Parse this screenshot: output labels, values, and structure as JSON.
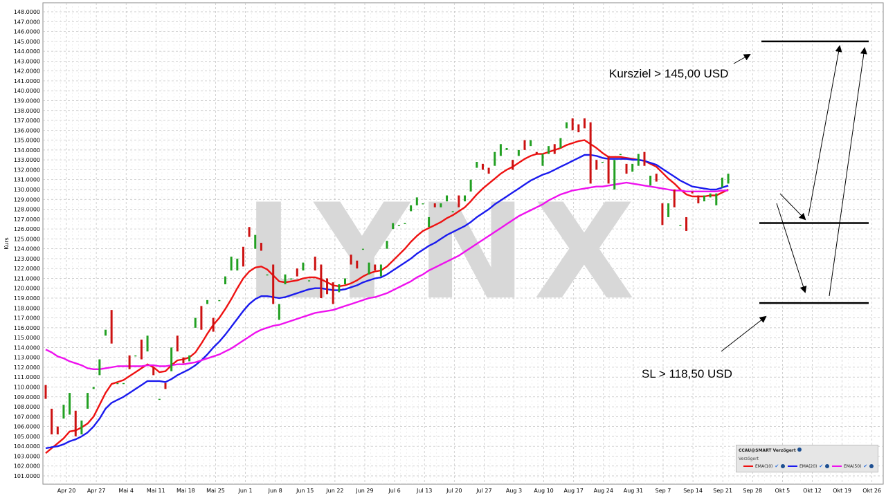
{
  "chart_data": {
    "type": "candlestick",
    "ylabel": "Kurs",
    "ylim": [
      100.5,
      148.6
    ],
    "y_ticks": [
      "101.0000",
      "102.0000",
      "103.0000",
      "104.0000",
      "105.0000",
      "106.0000",
      "107.0000",
      "108.0000",
      "109.0000",
      "110.0000",
      "111.0000",
      "112.0000",
      "113.0000",
      "114.0000",
      "115.0000",
      "116.0000",
      "117.0000",
      "118.0000",
      "119.0000",
      "120.0000",
      "121.0000",
      "122.0000",
      "123.0000",
      "124.0000",
      "125.0000",
      "126.0000",
      "127.0000",
      "128.0000",
      "129.0000",
      "130.0000",
      "131.0000",
      "132.0000",
      "133.0000",
      "134.0000",
      "135.0000",
      "136.0000",
      "137.0000",
      "138.0000",
      "139.0000",
      "140.0000",
      "141.0000",
      "142.0000",
      "143.0000",
      "144.0000",
      "145.0000",
      "146.0000",
      "147.0000",
      "148.0000"
    ],
    "x_ticks": [
      "Apr 20",
      "Apr 27",
      "Mai 4",
      "Mai 11",
      "Mai 18",
      "Mai 25",
      "Jun 1",
      "Jun 8",
      "Jun 15",
      "Jun 22",
      "Jun 29",
      "Jul 6",
      "Jul 13",
      "Jul 20",
      "Jul 27",
      "Aug 3",
      "Aug 10",
      "Aug 17",
      "Aug 24",
      "Aug 31",
      "Sep 7",
      "Sep 14",
      "Sep 21",
      "Sep 28",
      "Okt 5",
      "Okt 12",
      "Okt 19",
      "Okt 26"
    ],
    "grid": true,
    "watermark": "LYNX",
    "candles": [
      {
        "o": 110.2,
        "c": 108.8
      },
      {
        "o": 107.8,
        "c": 105.2
      },
      {
        "o": 106.0,
        "c": 105.2
      },
      {
        "o": 106.8,
        "c": 108.2
      },
      {
        "o": 107.2,
        "c": 109.4
      },
      {
        "o": 107.6,
        "c": 105.0
      },
      {
        "o": 105.2,
        "c": 106.6
      },
      {
        "o": 107.8,
        "c": 109.4
      },
      {
        "o": 109.8,
        "c": 110.0
      },
      {
        "o": 111.2,
        "c": 112.8
      },
      {
        "o": 115.2,
        "c": 115.8
      },
      {
        "o": 117.8,
        "c": 114.4
      },
      {
        "o": 110.4,
        "c": 110.4
      },
      {
        "o": 110.4,
        "c": 110.4
      },
      {
        "o": 113.2,
        "c": 111.8
      },
      {
        "o": 113.2,
        "c": 113.2
      },
      {
        "o": 114.8,
        "c": 112.8
      },
      {
        "o": 113.6,
        "c": 115.2
      },
      {
        "o": 112.0,
        "c": 111.2
      },
      {
        "o": 108.8,
        "c": 108.8
      },
      {
        "o": 110.4,
        "c": 109.8
      },
      {
        "o": 111.6,
        "c": 114.0
      },
      {
        "o": 115.2,
        "c": 113.6
      },
      {
        "o": 113.0,
        "c": 112.4
      },
      {
        "o": 112.6,
        "c": 113.2
      },
      {
        "o": 116.0,
        "c": 117.0
      },
      {
        "o": 118.2,
        "c": 115.8
      },
      {
        "o": 118.4,
        "c": 118.8
      },
      {
        "o": 117.0,
        "c": 115.6
      },
      {
        "o": 118.8,
        "c": 118.8
      },
      {
        "o": 120.4,
        "c": 121.2
      },
      {
        "o": 121.8,
        "c": 123.2
      },
      {
        "o": 121.8,
        "c": 123.0
      },
      {
        "o": 124.2,
        "c": 122.2
      },
      {
        "o": 126.2,
        "c": 125.2
      },
      {
        "o": 124.0,
        "c": 125.4
      },
      {
        "o": 124.6,
        "c": 123.8
      },
      {
        "o": 121.4,
        "c": 121.4
      },
      {
        "o": 122.4,
        "c": 118.4
      },
      {
        "o": 116.8,
        "c": 118.4
      },
      {
        "o": 120.4,
        "c": 121.4
      },
      {
        "o": 121.0,
        "c": 121.0
      },
      {
        "o": 122.0,
        "c": 121.2
      },
      {
        "o": 121.8,
        "c": 122.6
      },
      {
        "o": 120.8,
        "c": 120.8
      },
      {
        "o": 123.2,
        "c": 121.8
      },
      {
        "o": 122.4,
        "c": 119.0
      },
      {
        "o": 121.0,
        "c": 119.4
      },
      {
        "o": 120.6,
        "c": 118.4
      },
      {
        "o": 119.6,
        "c": 120.4
      },
      {
        "o": 120.4,
        "c": 121.0
      },
      {
        "o": 123.4,
        "c": 122.4
      },
      {
        "o": 122.8,
        "c": 122.0
      },
      {
        "o": 124.0,
        "c": 124.0
      },
      {
        "o": 121.4,
        "c": 122.6
      },
      {
        "o": 122.4,
        "c": 121.8
      },
      {
        "o": 121.2,
        "c": 122.4
      },
      {
        "o": 124.0,
        "c": 124.8
      },
      {
        "o": 126.0,
        "c": 126.6
      },
      {
        "o": 126.4,
        "c": 126.4
      },
      {
        "o": 126.6,
        "c": 126.6
      },
      {
        "o": 127.8,
        "c": 128.4
      },
      {
        "o": 128.4,
        "c": 129.2
      },
      {
        "o": 128.6,
        "c": 128.6
      },
      {
        "o": 126.2,
        "c": 127.2
      },
      {
        "o": 128.6,
        "c": 128.2
      },
      {
        "o": 128.2,
        "c": 128.6
      },
      {
        "o": 128.8,
        "c": 129.4
      },
      {
        "o": 127.8,
        "c": 127.8
      },
      {
        "o": 129.4,
        "c": 128.2
      },
      {
        "o": 128.8,
        "c": 129.4
      },
      {
        "o": 129.8,
        "c": 131.0
      },
      {
        "o": 132.2,
        "c": 132.8
      },
      {
        "o": 132.6,
        "c": 132.0
      },
      {
        "o": 132.2,
        "c": 131.6
      },
      {
        "o": 132.4,
        "c": 133.8
      },
      {
        "o": 133.4,
        "c": 134.6
      },
      {
        "o": 134.0,
        "c": 134.2
      },
      {
        "o": 133.0,
        "c": 132.0
      },
      {
        "o": 133.4,
        "c": 134.0
      },
      {
        "o": 135.0,
        "c": 134.0
      },
      {
        "o": 134.4,
        "c": 135.0
      },
      {
        "o": 133.8,
        "c": 133.6
      },
      {
        "o": 132.4,
        "c": 133.6
      },
      {
        "o": 133.6,
        "c": 134.4
      },
      {
        "o": 134.6,
        "c": 133.6
      },
      {
        "o": 134.2,
        "c": 135.2
      },
      {
        "o": 136.2,
        "c": 136.8
      },
      {
        "o": 137.2,
        "c": 136.0
      },
      {
        "o": 136.6,
        "c": 135.8
      },
      {
        "o": 137.2,
        "c": 136.2
      },
      {
        "o": 136.8,
        "c": 130.6
      },
      {
        "o": 133.0,
        "c": 132.0
      },
      {
        "o": 132.8,
        "c": 132.8
      },
      {
        "o": 133.4,
        "c": 130.6
      },
      {
        "o": 130.0,
        "c": 133.0
      },
      {
        "o": 133.6,
        "c": 133.6
      },
      {
        "o": 132.6,
        "c": 131.6
      },
      {
        "o": 131.8,
        "c": 132.6
      },
      {
        "o": 132.4,
        "c": 133.6
      },
      {
        "o": 133.8,
        "c": 132.4
      },
      {
        "o": 130.4,
        "c": 131.4
      },
      {
        "o": 131.6,
        "c": 130.8
      },
      {
        "o": 128.6,
        "c": 126.4
      },
      {
        "o": 127.2,
        "c": 128.6
      },
      {
        "o": 130.0,
        "c": 128.2
      },
      {
        "o": 126.4,
        "c": 126.4
      },
      {
        "o": 127.2,
        "c": 125.8
      },
      {
        "o": 129.8,
        "c": 129.6
      },
      {
        "o": 129.4,
        "c": 128.6
      },
      {
        "o": 128.8,
        "c": 129.4
      },
      {
        "o": 129.2,
        "c": 129.6
      },
      {
        "o": 128.4,
        "c": 129.6
      },
      {
        "o": 130.2,
        "c": 131.2
      },
      {
        "o": 130.6,
        "c": 131.6
      }
    ],
    "series": [
      {
        "name": "EMA(10)",
        "color": "#ee1111",
        "values": [
          103.3,
          103.8,
          104.3,
          104.8,
          105.5,
          105.6,
          105.9,
          106.3,
          107.0,
          108.2,
          109.4,
          110.3,
          110.5,
          110.7,
          111.1,
          111.5,
          111.9,
          112.3,
          112.0,
          111.5,
          111.6,
          112.2,
          112.7,
          112.8,
          113.0,
          113.5,
          114.4,
          115.4,
          116.3,
          117.0,
          117.9,
          118.9,
          120.0,
          121.0,
          121.7,
          122.1,
          122.2,
          121.9,
          121.3,
          120.7,
          120.6,
          120.7,
          120.8,
          121.0,
          121.1,
          121.1,
          120.9,
          120.6,
          120.3,
          120.2,
          120.3,
          120.5,
          120.8,
          121.2,
          121.5,
          121.7,
          121.8,
          122.2,
          122.8,
          123.4,
          124.0,
          124.7,
          125.3,
          125.8,
          126.1,
          126.4,
          126.7,
          127.1,
          127.4,
          127.8,
          128.2,
          128.8,
          129.5,
          130.1,
          130.6,
          131.1,
          131.6,
          132.0,
          132.3,
          132.7,
          133.1,
          133.4,
          133.6,
          133.6,
          133.8,
          134.0,
          134.2,
          134.5,
          134.7,
          134.9,
          135.0,
          134.6,
          134.2,
          133.7,
          133.3,
          133.3,
          133.3,
          133.2,
          133.1,
          133.0,
          132.9,
          132.6,
          132.3,
          131.7,
          131.1,
          130.6,
          130.0,
          129.5,
          129.3,
          129.3,
          129.3,
          129.4,
          129.4,
          129.7,
          130.0
        ]
      },
      {
        "name": "EMA(20)",
        "color": "#1a1aee",
        "values": [
          103.8,
          103.9,
          104.0,
          104.2,
          104.5,
          104.7,
          105.0,
          105.4,
          106.0,
          106.8,
          107.8,
          108.4,
          108.7,
          109.0,
          109.4,
          109.8,
          110.2,
          110.6,
          110.6,
          110.6,
          110.5,
          110.8,
          111.2,
          111.5,
          111.8,
          112.2,
          112.7,
          113.3,
          114.0,
          114.6,
          115.3,
          116.1,
          116.9,
          117.7,
          118.4,
          118.9,
          119.2,
          119.2,
          119.1,
          119.0,
          119.1,
          119.3,
          119.5,
          119.7,
          119.9,
          120.0,
          120.0,
          119.9,
          119.8,
          119.8,
          119.9,
          120.1,
          120.3,
          120.6,
          120.8,
          121.0,
          121.1,
          121.4,
          121.8,
          122.2,
          122.6,
          123.0,
          123.5,
          123.9,
          124.3,
          124.6,
          125.0,
          125.4,
          125.7,
          126.0,
          126.3,
          126.7,
          127.2,
          127.6,
          128.0,
          128.5,
          128.9,
          129.3,
          129.7,
          130.1,
          130.5,
          130.9,
          131.2,
          131.5,
          131.7,
          132.0,
          132.3,
          132.6,
          132.9,
          133.2,
          133.5,
          133.5,
          133.4,
          133.2,
          133.1,
          133.1,
          133.1,
          133.1,
          133.0,
          133.0,
          132.9,
          132.7,
          132.5,
          132.1,
          131.7,
          131.3,
          130.9,
          130.6,
          130.3,
          130.2,
          130.1,
          130.0,
          130.0,
          130.2,
          130.4
        ]
      },
      {
        "name": "EMA(50)",
        "color": "#ee11ee",
        "values": [
          113.8,
          113.5,
          113.1,
          112.9,
          112.6,
          112.4,
          112.2,
          111.9,
          111.8,
          111.8,
          111.9,
          112.0,
          112.1,
          112.1,
          112.1,
          112.1,
          112.1,
          112.2,
          112.2,
          112.1,
          112.1,
          112.2,
          112.3,
          112.3,
          112.4,
          112.5,
          112.7,
          112.9,
          113.1,
          113.3,
          113.6,
          113.9,
          114.3,
          114.7,
          115.1,
          115.5,
          115.8,
          116.0,
          116.2,
          116.3,
          116.5,
          116.7,
          116.9,
          117.1,
          117.3,
          117.5,
          117.6,
          117.7,
          117.8,
          118.0,
          118.2,
          118.4,
          118.6,
          118.8,
          119.0,
          119.1,
          119.3,
          119.5,
          119.8,
          120.1,
          120.4,
          120.7,
          121.1,
          121.4,
          121.8,
          122.1,
          122.4,
          122.7,
          123.0,
          123.3,
          123.7,
          124.1,
          124.5,
          124.9,
          125.3,
          125.7,
          126.1,
          126.5,
          126.9,
          127.3,
          127.6,
          127.9,
          128.2,
          128.5,
          128.9,
          129.2,
          129.5,
          129.7,
          129.9,
          130.0,
          130.1,
          130.2,
          130.3,
          130.3,
          130.4,
          130.5,
          130.6,
          130.7,
          130.6,
          130.5,
          130.4,
          130.3,
          130.2,
          130.1,
          130.0,
          129.9,
          129.9,
          129.8,
          129.8,
          129.8,
          129.8,
          129.8,
          129.8,
          129.9,
          129.9
        ]
      }
    ],
    "levels": [
      {
        "value": 145.0
      },
      {
        "value": 126.6
      },
      {
        "value": 118.5
      }
    ],
    "annotations": [
      {
        "text": "Kursziel > 145,00 USD"
      },
      {
        "text": "SL > 118,50 USD"
      }
    ]
  },
  "legend": {
    "title": "CCAU@SMART Verzögert",
    "subtitle": "Verzögert",
    "entries": [
      {
        "label": "EMA(10)",
        "color": "#ee1111"
      },
      {
        "label": "EMA(20)",
        "color": "#1a1aee"
      },
      {
        "label": "EMA(50)",
        "color": "#ee11ee"
      }
    ]
  },
  "colors": {
    "up": "#22a022",
    "down": "#cc1111",
    "grid": "#bfbfbf",
    "watermark": "#d8d8d8"
  }
}
